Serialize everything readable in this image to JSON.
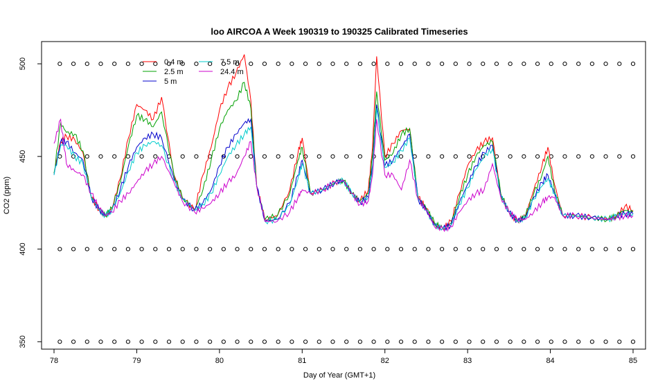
{
  "chart_data": {
    "type": "line",
    "title": "loo AIRCOA A  Week 190319 to 190325  Calibrated Timeseries",
    "xlabel": "Day of Year (GMT+1)",
    "ylabel": "CO2 (ppm)",
    "xlim": [
      78,
      85
    ],
    "ylim": [
      346,
      512
    ],
    "xticks": [
      78,
      79,
      80,
      81,
      82,
      83,
      84,
      85
    ],
    "yticks": [
      350,
      400,
      450,
      500
    ],
    "legend_position": "top-left",
    "series": [
      {
        "name": "0.4 m",
        "color": "#ff0000",
        "x": [
          78.0,
          78.08,
          78.15,
          78.25,
          78.35,
          78.45,
          78.55,
          78.62,
          78.7,
          78.8,
          78.9,
          79.0,
          79.1,
          79.2,
          79.3,
          79.45,
          79.55,
          79.7,
          79.8,
          79.9,
          80.0,
          80.1,
          80.2,
          80.3,
          80.38,
          80.45,
          80.55,
          80.7,
          80.85,
          80.95,
          81.0,
          81.1,
          81.25,
          81.4,
          81.5,
          81.6,
          81.7,
          81.8,
          81.85,
          81.9,
          82.0,
          82.1,
          82.2,
          82.3,
          82.4,
          82.5,
          82.6,
          82.7,
          82.8,
          82.9,
          83.0,
          83.1,
          83.2,
          83.3,
          83.4,
          83.5,
          83.6,
          83.7,
          83.8,
          83.9,
          83.97,
          84.05,
          84.15,
          84.3,
          84.5,
          84.7,
          84.8,
          84.9,
          85.0
        ],
        "y": [
          441,
          458,
          461,
          459,
          452,
          428,
          421,
          418,
          422,
          438,
          460,
          478,
          475,
          470,
          482,
          440,
          428,
          421,
          440,
          455,
          475,
          487,
          495,
          505,
          480,
          434,
          416,
          418,
          432,
          452,
          460,
          430,
          432,
          436,
          437,
          430,
          426,
          432,
          455,
          504,
          450,
          457,
          464,
          465,
          428,
          422,
          414,
          411,
          415,
          430,
          445,
          453,
          458,
          460,
          430,
          420,
          415,
          418,
          432,
          445,
          455,
          435,
          418,
          418,
          417,
          416,
          418,
          423,
          421
        ]
      },
      {
        "name": "2.5 m",
        "color": "#00a000",
        "x": [
          78.0,
          78.08,
          78.15,
          78.25,
          78.35,
          78.45,
          78.55,
          78.62,
          78.7,
          78.8,
          78.9,
          79.0,
          79.1,
          79.2,
          79.3,
          79.45,
          79.55,
          79.7,
          79.8,
          79.9,
          80.0,
          80.1,
          80.2,
          80.3,
          80.38,
          80.45,
          80.55,
          80.7,
          80.85,
          80.95,
          81.0,
          81.1,
          81.25,
          81.4,
          81.5,
          81.6,
          81.7,
          81.8,
          81.85,
          81.9,
          82.0,
          82.1,
          82.2,
          82.3,
          82.4,
          82.5,
          82.6,
          82.7,
          82.8,
          82.9,
          83.0,
          83.1,
          83.2,
          83.3,
          83.4,
          83.5,
          83.6,
          83.7,
          83.8,
          83.9,
          83.97,
          84.05,
          84.15,
          84.3,
          84.5,
          84.7,
          84.8,
          84.9,
          85.0
        ],
        "y": [
          441,
          468,
          463,
          462,
          453,
          428,
          421,
          418,
          422,
          436,
          456,
          472,
          470,
          466,
          474,
          440,
          428,
          421,
          432,
          448,
          465,
          475,
          480,
          490,
          476,
          434,
          416,
          418,
          430,
          448,
          455,
          430,
          432,
          436,
          437,
          430,
          426,
          430,
          450,
          485,
          448,
          452,
          462,
          465,
          428,
          422,
          414,
          411,
          414,
          428,
          440,
          450,
          456,
          458,
          430,
          420,
          415,
          418,
          430,
          440,
          450,
          432,
          418,
          418,
          417,
          416,
          418,
          421,
          420
        ]
      },
      {
        "name": "5 m",
        "color": "#0000cc",
        "x": [
          78.0,
          78.08,
          78.15,
          78.25,
          78.35,
          78.45,
          78.55,
          78.62,
          78.7,
          78.8,
          78.9,
          79.0,
          79.1,
          79.2,
          79.3,
          79.45,
          79.55,
          79.7,
          79.8,
          79.9,
          80.0,
          80.1,
          80.2,
          80.3,
          80.38,
          80.45,
          80.55,
          80.7,
          80.85,
          80.95,
          81.0,
          81.1,
          81.25,
          81.4,
          81.5,
          81.6,
          81.7,
          81.8,
          81.85,
          81.9,
          82.0,
          82.1,
          82.2,
          82.3,
          82.4,
          82.5,
          82.6,
          82.7,
          82.8,
          82.9,
          83.0,
          83.1,
          83.2,
          83.3,
          83.4,
          83.5,
          83.6,
          83.7,
          83.8,
          83.9,
          83.97,
          84.05,
          84.15,
          84.3,
          84.5,
          84.7,
          84.8,
          84.9,
          85.0
        ],
        "y": [
          440,
          458,
          458,
          452,
          448,
          428,
          421,
          418,
          421,
          432,
          445,
          455,
          460,
          462,
          460,
          438,
          427,
          421,
          425,
          432,
          445,
          455,
          462,
          468,
          470,
          434,
          415,
          416,
          425,
          440,
          448,
          430,
          432,
          436,
          437,
          430,
          425,
          428,
          445,
          478,
          445,
          448,
          455,
          462,
          427,
          421,
          413,
          411,
          413,
          425,
          435,
          445,
          452,
          456,
          429,
          420,
          415,
          417,
          428,
          436,
          440,
          430,
          418,
          418,
          417,
          416,
          418,
          419,
          419
        ]
      },
      {
        "name": "7.5 m",
        "color": "#00cccc",
        "x": [
          78.0,
          78.08,
          78.15,
          78.25,
          78.35,
          78.45,
          78.55,
          78.62,
          78.7,
          78.8,
          78.9,
          79.0,
          79.1,
          79.2,
          79.3,
          79.45,
          79.55,
          79.7,
          79.8,
          79.9,
          80.0,
          80.1,
          80.2,
          80.3,
          80.38,
          80.45,
          80.55,
          80.7,
          80.85,
          80.95,
          81.0,
          81.1,
          81.25,
          81.4,
          81.5,
          81.6,
          81.7,
          81.8,
          81.85,
          81.9,
          82.0,
          82.1,
          82.2,
          82.3,
          82.4,
          82.5,
          82.6,
          82.7,
          82.8,
          82.9,
          83.0,
          83.1,
          83.2,
          83.3,
          83.4,
          83.5,
          83.6,
          83.7,
          83.8,
          83.9,
          83.97,
          84.05,
          84.15,
          84.3,
          84.5,
          84.7,
          84.8,
          84.9,
          85.0
        ],
        "y": [
          440,
          456,
          456,
          450,
          446,
          428,
          421,
          418,
          421,
          430,
          442,
          452,
          456,
          458,
          456,
          437,
          427,
          421,
          424,
          430,
          440,
          450,
          456,
          462,
          466,
          434,
          415,
          416,
          424,
          438,
          446,
          430,
          432,
          436,
          437,
          430,
          425,
          428,
          444,
          476,
          444,
          447,
          453,
          460,
          427,
          421,
          413,
          411,
          413,
          424,
          433,
          443,
          450,
          454,
          429,
          420,
          415,
          417,
          427,
          434,
          438,
          430,
          418,
          418,
          417,
          416,
          418,
          419,
          419
        ]
      },
      {
        "name": "24.4 m",
        "color": "#cc00cc",
        "x": [
          78.0,
          78.08,
          78.15,
          78.25,
          78.35,
          78.45,
          78.55,
          78.62,
          78.7,
          78.8,
          78.9,
          79.0,
          79.1,
          79.2,
          79.3,
          79.45,
          79.55,
          79.7,
          79.8,
          79.9,
          80.0,
          80.1,
          80.2,
          80.3,
          80.38,
          80.45,
          80.55,
          80.7,
          80.85,
          80.95,
          81.0,
          81.1,
          81.25,
          81.4,
          81.5,
          81.6,
          81.7,
          81.8,
          81.85,
          81.9,
          82.0,
          82.1,
          82.2,
          82.3,
          82.4,
          82.5,
          82.6,
          82.7,
          82.8,
          82.9,
          83.0,
          83.1,
          83.2,
          83.3,
          83.4,
          83.5,
          83.6,
          83.7,
          83.8,
          83.9,
          83.97,
          84.05,
          84.15,
          84.3,
          84.5,
          84.7,
          84.8,
          84.9,
          85.0
        ],
        "y": [
          457,
          470,
          446,
          442,
          440,
          430,
          422,
          418,
          420,
          426,
          430,
          436,
          442,
          446,
          450,
          436,
          426,
          420,
          422,
          425,
          430,
          436,
          440,
          450,
          458,
          434,
          415,
          415,
          420,
          428,
          432,
          430,
          432,
          436,
          437,
          430,
          424,
          426,
          440,
          470,
          440,
          440,
          432,
          448,
          427,
          421,
          412,
          411,
          412,
          420,
          426,
          430,
          432,
          446,
          428,
          420,
          416,
          416,
          420,
          425,
          428,
          428,
          418,
          418,
          417,
          416,
          417,
          418,
          418
        ]
      }
    ]
  }
}
